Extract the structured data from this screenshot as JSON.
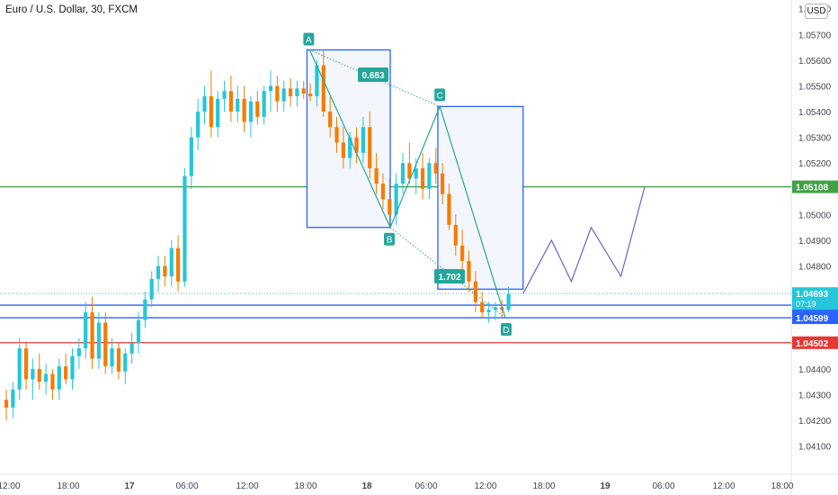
{
  "header": {
    "title": "Euro / U.S. Dollar, 30, FXCM",
    "currency_button": "USD"
  },
  "chart_data": {
    "type": "candlestick",
    "title": "Euro / U.S. Dollar, 30, FXCM",
    "y_axis": {
      "range": [
        1.0405,
        1.0582
      ],
      "ticks": [
        "1.04100",
        "1.04200",
        "1.04300",
        "1.04400",
        "1.04500",
        "1.04600",
        "1.04700",
        "1.04800",
        "1.04900",
        "1.05000",
        "1.05100",
        "1.05200",
        "1.05300",
        "1.05400",
        "1.05500",
        "1.05600",
        "1.05700",
        "1.05800"
      ]
    },
    "x_axis": {
      "ticks": [
        "12:00",
        "18:00",
        "17",
        "06:00",
        "12:00",
        "18:00",
        "18",
        "06:00",
        "12:00",
        "18:00",
        "19",
        "06:00",
        "12:00",
        "18:00"
      ]
    },
    "colors": {
      "up": "#26c6da",
      "down": "#f57c00",
      "harmonic": "#26a69a",
      "box_border": "#2962ff",
      "box_fill": "#f3f6fc",
      "projection": "#6f5fcf"
    },
    "candles": [
      [
        1.0428,
        1.0432,
        1.042,
        1.0425
      ],
      [
        1.0425,
        1.0435,
        1.0421,
        1.0432
      ],
      [
        1.0432,
        1.0452,
        1.0428,
        1.0448
      ],
      [
        1.0448,
        1.045,
        1.0432,
        1.0436
      ],
      [
        1.0436,
        1.0444,
        1.0428,
        1.044
      ],
      [
        1.044,
        1.0446,
        1.0432,
        1.0435
      ],
      [
        1.0435,
        1.0442,
        1.043,
        1.0438
      ],
      [
        1.0438,
        1.044,
        1.0428,
        1.0432
      ],
      [
        1.0432,
        1.0444,
        1.0428,
        1.0441
      ],
      [
        1.0441,
        1.0446,
        1.0434,
        1.0436
      ],
      [
        1.0436,
        1.0448,
        1.0432,
        1.0445
      ],
      [
        1.0445,
        1.0452,
        1.044,
        1.0448
      ],
      [
        1.0448,
        1.0466,
        1.0444,
        1.0462
      ],
      [
        1.0462,
        1.0468,
        1.044,
        1.0444
      ],
      [
        1.0444,
        1.0462,
        1.044,
        1.0458
      ],
      [
        1.0458,
        1.0462,
        1.0438,
        1.0441
      ],
      [
        1.0441,
        1.0452,
        1.0438,
        1.0448
      ],
      [
        1.0448,
        1.045,
        1.0436,
        1.0439
      ],
      [
        1.0439,
        1.0448,
        1.0434,
        1.0446
      ],
      [
        1.0446,
        1.0454,
        1.0442,
        1.045
      ],
      [
        1.045,
        1.0462,
        1.0446,
        1.0459
      ],
      [
        1.0459,
        1.047,
        1.0456,
        1.0467
      ],
      [
        1.0467,
        1.0478,
        1.0464,
        1.0475
      ],
      [
        1.0475,
        1.0484,
        1.047,
        1.048
      ],
      [
        1.048,
        1.0484,
        1.0472,
        1.0476
      ],
      [
        1.0476,
        1.049,
        1.0472,
        1.0487
      ],
      [
        1.0487,
        1.0492,
        1.047,
        1.0474
      ],
      [
        1.0474,
        1.0518,
        1.0472,
        1.0515
      ],
      [
        1.0515,
        1.0534,
        1.051,
        1.053
      ],
      [
        1.053,
        1.0545,
        1.0525,
        1.054
      ],
      [
        1.054,
        1.055,
        1.0535,
        1.0546
      ],
      [
        1.0546,
        1.0556,
        1.053,
        1.0534
      ],
      [
        1.0534,
        1.0548,
        1.053,
        1.0545
      ],
      [
        1.0545,
        1.0552,
        1.054,
        1.0548
      ],
      [
        1.0548,
        1.0554,
        1.0536,
        1.054
      ],
      [
        1.054,
        1.055,
        1.0536,
        1.0545
      ],
      [
        1.0545,
        1.055,
        1.0532,
        1.0536
      ],
      [
        1.0536,
        1.0546,
        1.053,
        1.0544
      ],
      [
        1.0544,
        1.0548,
        1.0535,
        1.0538
      ],
      [
        1.0538,
        1.055,
        1.0535,
        1.0548
      ],
      [
        1.0548,
        1.0556,
        1.054,
        1.055
      ],
      [
        1.055,
        1.0554,
        1.054,
        1.0544
      ],
      [
        1.0544,
        1.0552,
        1.054,
        1.0549
      ],
      [
        1.0549,
        1.0553,
        1.0542,
        1.0546
      ],
      [
        1.0546,
        1.0552,
        1.0542,
        1.0549
      ],
      [
        1.0549,
        1.0552,
        1.0545,
        1.0547
      ],
      [
        1.0547,
        1.0551,
        1.0544,
        1.0546
      ],
      [
        1.0546,
        1.056,
        1.0542,
        1.0558
      ],
      [
        1.0558,
        1.0564,
        1.0538,
        1.054
      ],
      [
        1.054,
        1.0546,
        1.053,
        1.0534
      ],
      [
        1.0534,
        1.0538,
        1.0524,
        1.0528
      ],
      [
        1.0528,
        1.0534,
        1.0518,
        1.0522
      ],
      [
        1.0522,
        1.0532,
        1.0518,
        1.053
      ],
      [
        1.053,
        1.0534,
        1.052,
        1.0524
      ],
      [
        1.0524,
        1.0538,
        1.052,
        1.0534
      ],
      [
        1.0534,
        1.054,
        1.0514,
        1.0518
      ],
      [
        1.0518,
        1.0524,
        1.0508,
        1.0512
      ],
      [
        1.0512,
        1.0516,
        1.0502,
        1.0506
      ],
      [
        1.0506,
        1.0514,
        1.0496,
        1.05
      ],
      [
        1.05,
        1.0516,
        1.0496,
        1.0512
      ],
      [
        1.0512,
        1.0524,
        1.0508,
        1.052
      ],
      [
        1.052,
        1.0528,
        1.0512,
        1.0514
      ],
      [
        1.0514,
        1.0522,
        1.0508,
        1.0518
      ],
      [
        1.0518,
        1.0524,
        1.0506,
        1.051
      ],
      [
        1.051,
        1.0522,
        1.0506,
        1.052
      ],
      [
        1.052,
        1.0526,
        1.0512,
        1.0516
      ],
      [
        1.0516,
        1.052,
        1.0504,
        1.0508
      ],
      [
        1.0508,
        1.0512,
        1.0494,
        1.0496
      ],
      [
        1.0496,
        1.05,
        1.0484,
        1.0488
      ],
      [
        1.0488,
        1.0494,
        1.0478,
        1.0482
      ],
      [
        1.0482,
        1.0486,
        1.047,
        1.0474
      ],
      [
        1.0474,
        1.0478,
        1.0462,
        1.0466
      ],
      [
        1.0466,
        1.047,
        1.046,
        1.0462
      ],
      [
        1.0462,
        1.0466,
        1.0458,
        1.0463
      ],
      [
        1.0463,
        1.0466,
        1.0459,
        1.0464
      ],
      [
        1.0464,
        1.0467,
        1.046,
        1.0463
      ],
      [
        1.0463,
        1.0472,
        1.0462,
        1.0469
      ]
    ],
    "horizontal_levels": [
      {
        "value": 1.05108,
        "label": "1.05108",
        "color": "#43a047"
      },
      {
        "value": 1.04648,
        "label": "1.04648",
        "color": "#2962ff"
      },
      {
        "value": 1.04599,
        "label": "1.04599",
        "color": "#2962ff"
      },
      {
        "value": 1.04502,
        "label": "1.04502",
        "color": "#e53935"
      }
    ],
    "last_price": {
      "value": 1.04693,
      "label": "1.04693",
      "countdown": "07:19",
      "color": "#26c6da"
    },
    "pattern_points": [
      "A",
      "B",
      "C",
      "D"
    ],
    "ratios": [
      "0.683",
      "1.702"
    ]
  }
}
